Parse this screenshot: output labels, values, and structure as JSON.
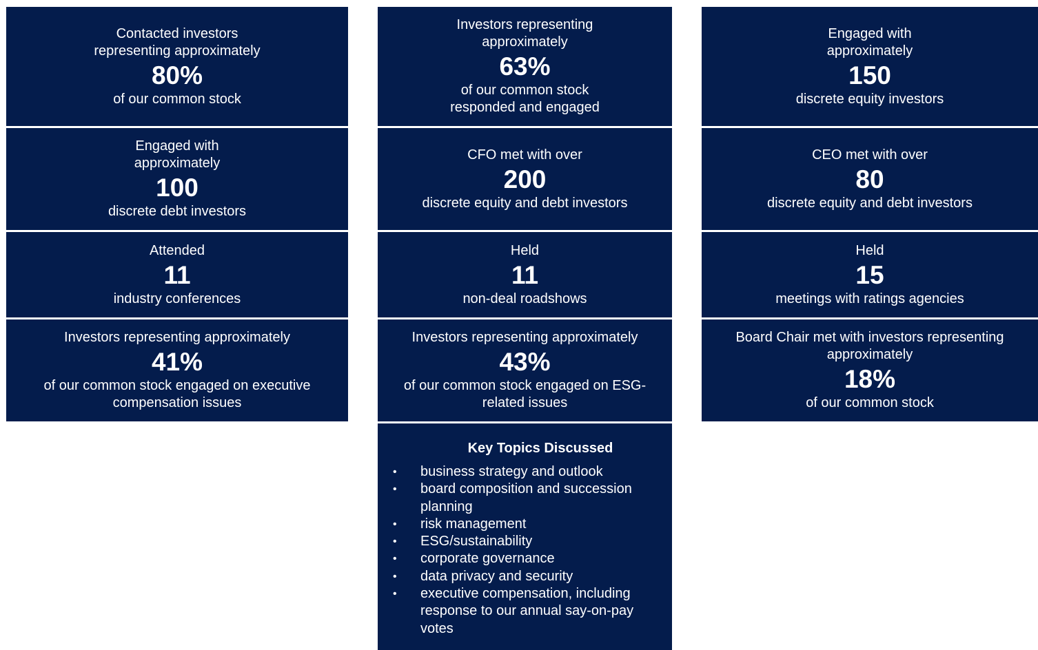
{
  "columns": [
    {
      "cards": [
        {
          "before": [
            "Contacted investors",
            "representing approximately"
          ],
          "figure": "80%",
          "after": [
            "of our common stock"
          ]
        },
        {
          "before": [
            "Engaged with",
            "approximately"
          ],
          "figure": "100",
          "after": [
            "discrete debt investors"
          ]
        },
        {
          "before": [
            "Attended"
          ],
          "figure": "11",
          "after": [
            "industry conferences"
          ]
        },
        {
          "before": [
            "Investors representing approximately"
          ],
          "figure": "41%",
          "after": [
            "of our common stock engaged on executive",
            "compensation issues"
          ]
        }
      ]
    },
    {
      "cards": [
        {
          "before": [
            "Investors representing",
            "approximately"
          ],
          "figure": "63%",
          "after": [
            "of our common stock",
            "responded and engaged"
          ]
        },
        {
          "before": [
            "CFO met with over"
          ],
          "figure": "200",
          "after": [
            "discrete equity and debt investors"
          ]
        },
        {
          "before": [
            "Held"
          ],
          "figure": "11",
          "after": [
            "non-deal roadshows"
          ]
        },
        {
          "before": [
            "Investors representing approximately"
          ],
          "figure": "43%",
          "after": [
            "of our common stock engaged on ESG-",
            "related issues"
          ]
        }
      ]
    },
    {
      "cards": [
        {
          "before": [
            "Engaged with",
            "approximately"
          ],
          "figure": "150",
          "after": [
            "discrete equity investors"
          ]
        },
        {
          "before": [
            "CEO met with over"
          ],
          "figure": "80",
          "after": [
            "discrete equity and debt investors"
          ]
        },
        {
          "before": [
            "Held"
          ],
          "figure": "15",
          "after": [
            "meetings with ratings agencies"
          ]
        },
        {
          "before": [
            "Board Chair met with investors representing",
            "approximately"
          ],
          "figure": "18%",
          "after": [
            "of our common stock"
          ]
        }
      ]
    }
  ],
  "key_topics": {
    "title": "Key Topics Discussed",
    "items": [
      "business strategy and outlook",
      "board composition and succession planning",
      "risk management",
      "ESG/sustainability",
      "corporate governance",
      "data privacy and security",
      "executive compensation, including response to our annual say-on-pay votes"
    ]
  }
}
